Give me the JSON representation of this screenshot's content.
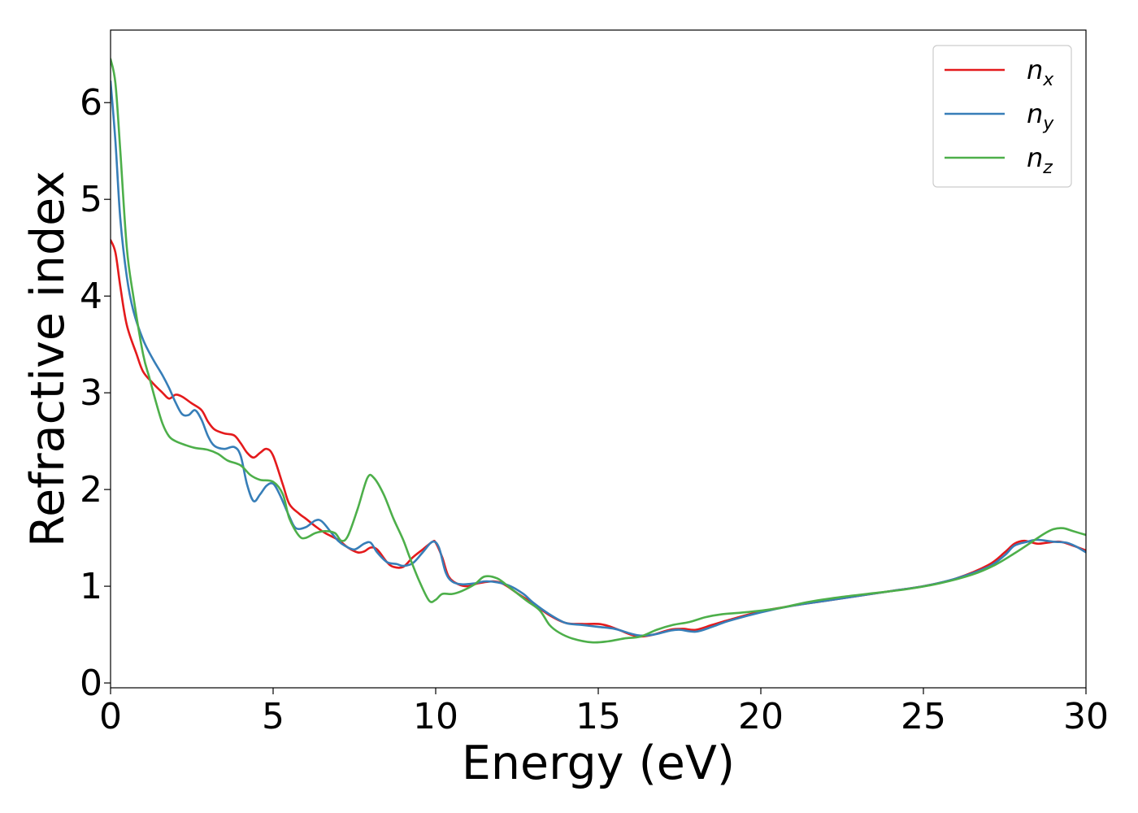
{
  "chart_data": {
    "type": "line",
    "title": "",
    "xlabel": "Energy (eV)",
    "ylabel": "Refractive index",
    "xlim": [
      0,
      30
    ],
    "ylim": [
      -0.05,
      6.75
    ],
    "xticks": [
      0,
      5,
      10,
      15,
      20,
      25,
      30
    ],
    "yticks": [
      0,
      1,
      2,
      3,
      4,
      5,
      6
    ],
    "grid": false,
    "legend_position": "top-right",
    "series": [
      {
        "name": "n_x",
        "legend_base": "n",
        "legend_sub": "x",
        "color": "#e41a1c",
        "points": [
          [
            0,
            4.58
          ],
          [
            0.15,
            4.45
          ],
          [
            0.3,
            4.1
          ],
          [
            0.5,
            3.7
          ],
          [
            0.8,
            3.4
          ],
          [
            1.0,
            3.22
          ],
          [
            1.3,
            3.1
          ],
          [
            1.6,
            3.0
          ],
          [
            1.8,
            2.94
          ],
          [
            2.0,
            2.98
          ],
          [
            2.2,
            2.96
          ],
          [
            2.5,
            2.89
          ],
          [
            2.8,
            2.82
          ],
          [
            3.0,
            2.7
          ],
          [
            3.2,
            2.62
          ],
          [
            3.5,
            2.58
          ],
          [
            3.8,
            2.56
          ],
          [
            4.0,
            2.48
          ],
          [
            4.2,
            2.38
          ],
          [
            4.4,
            2.33
          ],
          [
            4.6,
            2.38
          ],
          [
            4.8,
            2.42
          ],
          [
            5.0,
            2.35
          ],
          [
            5.3,
            2.05
          ],
          [
            5.5,
            1.85
          ],
          [
            5.8,
            1.75
          ],
          [
            6.0,
            1.7
          ],
          [
            6.3,
            1.62
          ],
          [
            6.6,
            1.55
          ],
          [
            7.0,
            1.48
          ],
          [
            7.3,
            1.4
          ],
          [
            7.6,
            1.35
          ],
          [
            7.8,
            1.36
          ],
          [
            8.0,
            1.4
          ],
          [
            8.2,
            1.38
          ],
          [
            8.5,
            1.25
          ],
          [
            8.7,
            1.2
          ],
          [
            9.0,
            1.2
          ],
          [
            9.3,
            1.3
          ],
          [
            9.6,
            1.38
          ],
          [
            9.9,
            1.46
          ],
          [
            10.0,
            1.45
          ],
          [
            10.2,
            1.3
          ],
          [
            10.4,
            1.1
          ],
          [
            10.7,
            1.02
          ],
          [
            11.0,
            1.0
          ],
          [
            11.3,
            1.03
          ],
          [
            11.8,
            1.05
          ],
          [
            12.1,
            1.02
          ],
          [
            12.5,
            0.93
          ],
          [
            13.0,
            0.82
          ],
          [
            13.5,
            0.7
          ],
          [
            14.0,
            0.62
          ],
          [
            14.5,
            0.61
          ],
          [
            15.0,
            0.61
          ],
          [
            15.3,
            0.59
          ],
          [
            15.7,
            0.54
          ],
          [
            16.0,
            0.5
          ],
          [
            16.3,
            0.48
          ],
          [
            16.7,
            0.5
          ],
          [
            17.2,
            0.55
          ],
          [
            17.6,
            0.56
          ],
          [
            18.0,
            0.55
          ],
          [
            18.5,
            0.6
          ],
          [
            19.0,
            0.65
          ],
          [
            20.0,
            0.74
          ],
          [
            21.0,
            0.8
          ],
          [
            22.0,
            0.85
          ],
          [
            23.0,
            0.9
          ],
          [
            24.0,
            0.95
          ],
          [
            25.0,
            1.0
          ],
          [
            26.0,
            1.08
          ],
          [
            27.0,
            1.22
          ],
          [
            27.5,
            1.35
          ],
          [
            27.8,
            1.44
          ],
          [
            28.1,
            1.47
          ],
          [
            28.5,
            1.44
          ],
          [
            28.8,
            1.45
          ],
          [
            29.2,
            1.46
          ],
          [
            29.6,
            1.42
          ],
          [
            30.0,
            1.37
          ]
        ]
      },
      {
        "name": "n_y",
        "legend_base": "n",
        "legend_sub": "y",
        "color": "#377eb8",
        "points": [
          [
            0,
            6.22
          ],
          [
            0.15,
            5.6
          ],
          [
            0.3,
            4.8
          ],
          [
            0.5,
            4.2
          ],
          [
            0.7,
            3.85
          ],
          [
            1.0,
            3.55
          ],
          [
            1.3,
            3.35
          ],
          [
            1.6,
            3.18
          ],
          [
            1.8,
            3.05
          ],
          [
            2.0,
            2.9
          ],
          [
            2.2,
            2.78
          ],
          [
            2.4,
            2.77
          ],
          [
            2.6,
            2.82
          ],
          [
            2.8,
            2.72
          ],
          [
            3.0,
            2.55
          ],
          [
            3.2,
            2.45
          ],
          [
            3.5,
            2.42
          ],
          [
            3.8,
            2.44
          ],
          [
            4.0,
            2.35
          ],
          [
            4.2,
            2.05
          ],
          [
            4.4,
            1.88
          ],
          [
            4.6,
            1.95
          ],
          [
            4.8,
            2.04
          ],
          [
            5.0,
            2.06
          ],
          [
            5.2,
            1.95
          ],
          [
            5.5,
            1.72
          ],
          [
            5.7,
            1.6
          ],
          [
            6.0,
            1.61
          ],
          [
            6.3,
            1.68
          ],
          [
            6.5,
            1.67
          ],
          [
            6.8,
            1.55
          ],
          [
            7.0,
            1.47
          ],
          [
            7.2,
            1.42
          ],
          [
            7.5,
            1.38
          ],
          [
            7.8,
            1.44
          ],
          [
            8.0,
            1.45
          ],
          [
            8.2,
            1.35
          ],
          [
            8.5,
            1.25
          ],
          [
            8.8,
            1.23
          ],
          [
            9.0,
            1.21
          ],
          [
            9.3,
            1.24
          ],
          [
            9.6,
            1.35
          ],
          [
            9.9,
            1.46
          ],
          [
            10.1,
            1.4
          ],
          [
            10.3,
            1.15
          ],
          [
            10.5,
            1.05
          ],
          [
            10.8,
            1.02
          ],
          [
            11.2,
            1.03
          ],
          [
            11.5,
            1.05
          ],
          [
            11.9,
            1.04
          ],
          [
            12.3,
            1.0
          ],
          [
            12.7,
            0.92
          ],
          [
            13.0,
            0.83
          ],
          [
            13.5,
            0.71
          ],
          [
            14.0,
            0.62
          ],
          [
            14.5,
            0.6
          ],
          [
            15.0,
            0.58
          ],
          [
            15.5,
            0.56
          ],
          [
            16.0,
            0.51
          ],
          [
            16.3,
            0.49
          ],
          [
            16.7,
            0.5
          ],
          [
            17.2,
            0.54
          ],
          [
            17.5,
            0.55
          ],
          [
            18.0,
            0.53
          ],
          [
            18.5,
            0.58
          ],
          [
            19.0,
            0.64
          ],
          [
            20.0,
            0.73
          ],
          [
            21.0,
            0.8
          ],
          [
            22.0,
            0.85
          ],
          [
            23.0,
            0.9
          ],
          [
            24.0,
            0.95
          ],
          [
            25.0,
            1.0
          ],
          [
            26.0,
            1.08
          ],
          [
            27.0,
            1.2
          ],
          [
            27.5,
            1.32
          ],
          [
            27.8,
            1.42
          ],
          [
            28.2,
            1.46
          ],
          [
            28.5,
            1.48
          ],
          [
            29.0,
            1.46
          ],
          [
            29.4,
            1.45
          ],
          [
            29.7,
            1.41
          ],
          [
            30.0,
            1.35
          ]
        ]
      },
      {
        "name": "n_z",
        "legend_base": "n",
        "legend_sub": "z",
        "color": "#4daf4a",
        "points": [
          [
            0,
            6.45
          ],
          [
            0.15,
            6.2
          ],
          [
            0.3,
            5.5
          ],
          [
            0.5,
            4.5
          ],
          [
            0.7,
            4.0
          ],
          [
            1.0,
            3.4
          ],
          [
            1.2,
            3.15
          ],
          [
            1.4,
            2.9
          ],
          [
            1.6,
            2.68
          ],
          [
            1.8,
            2.55
          ],
          [
            2.0,
            2.5
          ],
          [
            2.3,
            2.46
          ],
          [
            2.6,
            2.43
          ],
          [
            3.0,
            2.41
          ],
          [
            3.3,
            2.37
          ],
          [
            3.6,
            2.3
          ],
          [
            4.0,
            2.25
          ],
          [
            4.3,
            2.15
          ],
          [
            4.6,
            2.1
          ],
          [
            5.0,
            2.08
          ],
          [
            5.3,
            1.95
          ],
          [
            5.5,
            1.7
          ],
          [
            5.8,
            1.52
          ],
          [
            6.0,
            1.5
          ],
          [
            6.3,
            1.55
          ],
          [
            6.6,
            1.57
          ],
          [
            6.9,
            1.55
          ],
          [
            7.1,
            1.47
          ],
          [
            7.3,
            1.52
          ],
          [
            7.6,
            1.8
          ],
          [
            7.9,
            2.12
          ],
          [
            8.1,
            2.12
          ],
          [
            8.4,
            1.95
          ],
          [
            8.7,
            1.7
          ],
          [
            9.0,
            1.48
          ],
          [
            9.2,
            1.3
          ],
          [
            9.5,
            1.05
          ],
          [
            9.8,
            0.85
          ],
          [
            10.0,
            0.86
          ],
          [
            10.2,
            0.92
          ],
          [
            10.5,
            0.92
          ],
          [
            10.8,
            0.95
          ],
          [
            11.2,
            1.02
          ],
          [
            11.5,
            1.1
          ],
          [
            11.9,
            1.08
          ],
          [
            12.3,
            0.98
          ],
          [
            12.8,
            0.85
          ],
          [
            13.2,
            0.75
          ],
          [
            13.5,
            0.6
          ],
          [
            13.8,
            0.52
          ],
          [
            14.2,
            0.46
          ],
          [
            14.8,
            0.42
          ],
          [
            15.3,
            0.43
          ],
          [
            15.8,
            0.46
          ],
          [
            16.3,
            0.48
          ],
          [
            16.8,
            0.55
          ],
          [
            17.3,
            0.6
          ],
          [
            17.8,
            0.63
          ],
          [
            18.3,
            0.68
          ],
          [
            18.8,
            0.71
          ],
          [
            19.5,
            0.73
          ],
          [
            20.5,
            0.77
          ],
          [
            21.5,
            0.84
          ],
          [
            22.5,
            0.89
          ],
          [
            23.5,
            0.93
          ],
          [
            24.5,
            0.97
          ],
          [
            25.5,
            1.03
          ],
          [
            26.5,
            1.12
          ],
          [
            27.2,
            1.22
          ],
          [
            27.8,
            1.34
          ],
          [
            28.3,
            1.45
          ],
          [
            28.7,
            1.54
          ],
          [
            29.0,
            1.59
          ],
          [
            29.3,
            1.6
          ],
          [
            29.6,
            1.57
          ],
          [
            30.0,
            1.53
          ]
        ]
      }
    ]
  }
}
